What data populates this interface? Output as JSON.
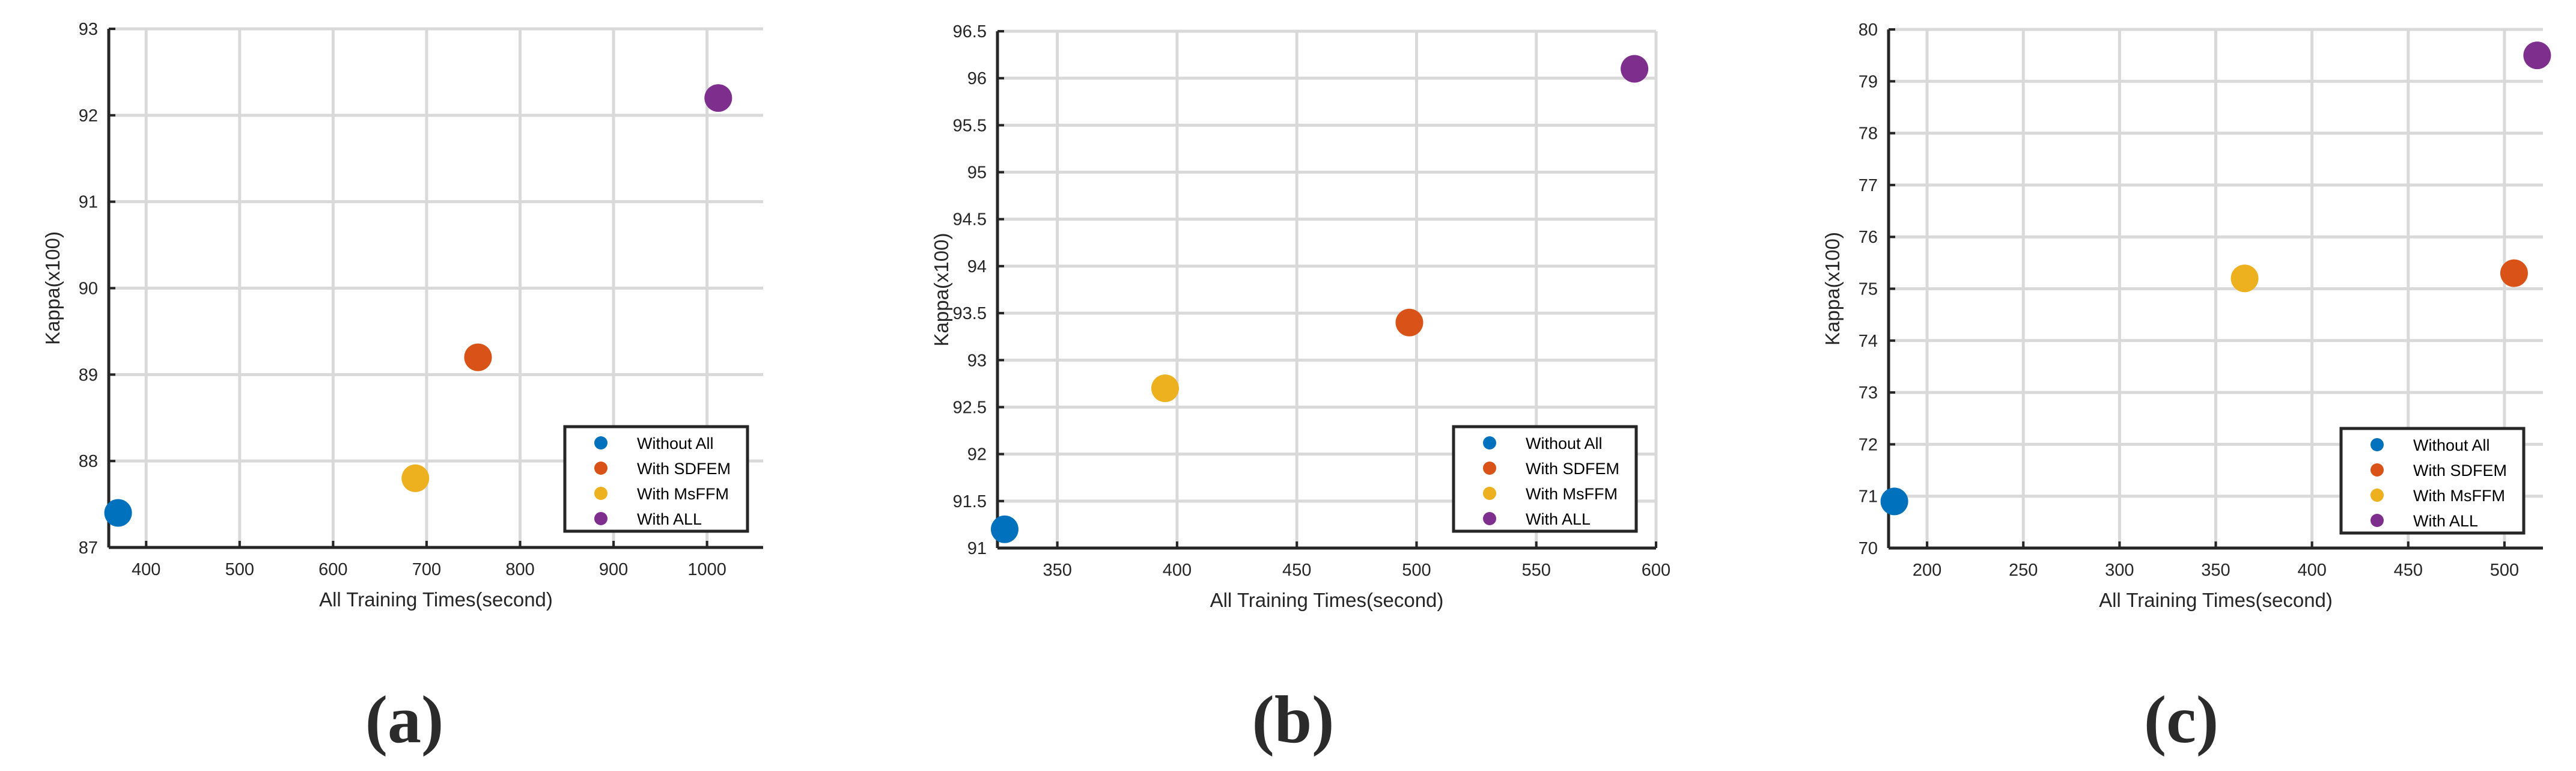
{
  "colors": {
    "Without All": "#0072BD",
    "With SDFEM": "#D95319",
    "With MsFFM": "#EDB120",
    "With ALL": "#7E2F8E"
  },
  "chart_data": [
    {
      "type": "scatter",
      "caption": "(a)",
      "xlabel": "All Training Times(second)",
      "ylabel": "Kappa(x100)",
      "xlim": [
        360,
        1060
      ],
      "ylim": [
        87,
        93
      ],
      "xticks": [
        "400",
        "500",
        "600",
        "700",
        "800",
        "900",
        "1000"
      ],
      "yticks": [
        "87",
        "88",
        "89",
        "90",
        "91",
        "92",
        "93"
      ],
      "grid": true,
      "legend_position": "bottom-right",
      "series": [
        {
          "name": "Without All",
          "x": [
            370
          ],
          "y": [
            87.4
          ]
        },
        {
          "name": "With SDFEM",
          "x": [
            755
          ],
          "y": [
            89.2
          ]
        },
        {
          "name": "With MsFFM",
          "x": [
            688
          ],
          "y": [
            87.8
          ]
        },
        {
          "name": "With ALL",
          "x": [
            1012
          ],
          "y": [
            92.2
          ]
        }
      ]
    },
    {
      "type": "scatter",
      "caption": "(b)",
      "xlabel": "All Training Times(second)",
      "ylabel": "Kappa(x100)",
      "xlim": [
        325,
        600
      ],
      "ylim": [
        91,
        96.5
      ],
      "xticks": [
        "350",
        "400",
        "450",
        "500",
        "550",
        "600"
      ],
      "yticks": [
        "91",
        "91.5",
        "92",
        "92.5",
        "93",
        "93.5",
        "94",
        "94.5",
        "95",
        "95.5",
        "96",
        "96.5"
      ],
      "grid": true,
      "legend_position": "bottom-right",
      "series": [
        {
          "name": "Without All",
          "x": [
            328
          ],
          "y": [
            91.2
          ]
        },
        {
          "name": "With SDFEM",
          "x": [
            497
          ],
          "y": [
            93.4
          ]
        },
        {
          "name": "With MsFFM",
          "x": [
            395
          ],
          "y": [
            92.7
          ]
        },
        {
          "name": "With ALL",
          "x": [
            591
          ],
          "y": [
            96.1
          ]
        }
      ]
    },
    {
      "type": "scatter",
      "caption": "(c)",
      "xlabel": "All Training Times(second)",
      "ylabel": "Kappa(x100)",
      "xlim": [
        180,
        520
      ],
      "ylim": [
        70,
        80
      ],
      "xticks": [
        "200",
        "250",
        "300",
        "350",
        "400",
        "450",
        "500"
      ],
      "yticks": [
        "70",
        "71",
        "72",
        "73",
        "74",
        "75",
        "76",
        "77",
        "78",
        "79",
        "80"
      ],
      "grid": true,
      "legend_position": "bottom-right",
      "series": [
        {
          "name": "Without All",
          "x": [
            183
          ],
          "y": [
            70.9
          ]
        },
        {
          "name": "With SDFEM",
          "x": [
            505
          ],
          "y": [
            75.3
          ]
        },
        {
          "name": "With MsFFM",
          "x": [
            365
          ],
          "y": [
            75.2
          ]
        },
        {
          "name": "With ALL",
          "x": [
            517
          ],
          "y": [
            79.5
          ]
        }
      ]
    }
  ]
}
